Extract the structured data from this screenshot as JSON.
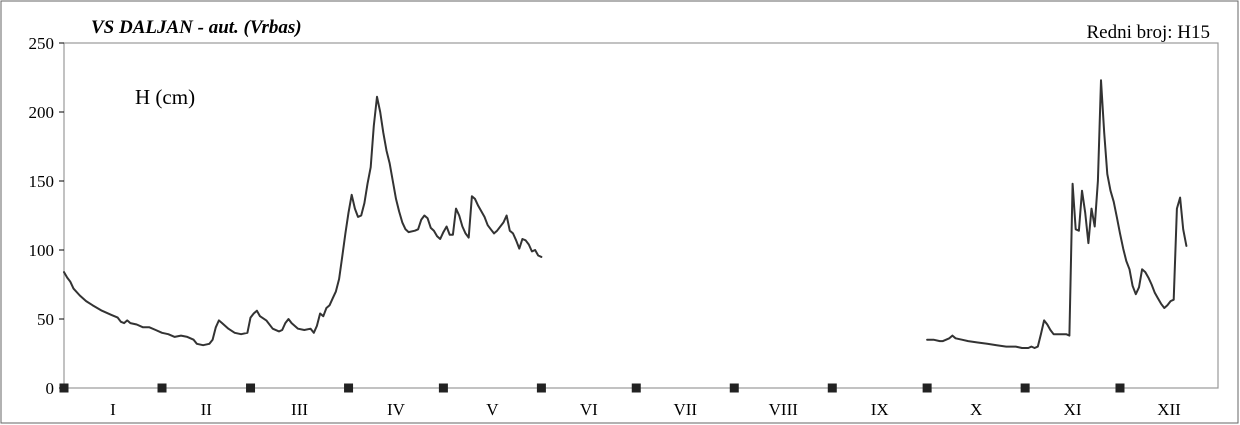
{
  "chart_data": {
    "type": "line",
    "title": "VS DALJAN - aut. (Vrbas)",
    "id_label": "Redni broj: H15",
    "ylabel": "H  (cm)",
    "ylim": [
      0,
      250
    ],
    "yticks": [
      "0",
      "50",
      "100",
      "150",
      "200",
      "250"
    ],
    "xlim": [
      0,
      365
    ],
    "grid": false,
    "months": [
      "I",
      "II",
      "III",
      "IV",
      "V",
      "VI",
      "VII",
      "VIII",
      "IX",
      "X",
      "XI",
      "XII"
    ],
    "month_start_days": [
      0,
      31,
      59,
      90,
      120,
      151,
      181,
      212,
      243,
      273,
      304,
      334
    ],
    "series": [
      {
        "color": "#333333",
        "segments": [
          [
            [
              0,
              84
            ],
            [
              1,
              80
            ],
            [
              2,
              77
            ],
            [
              3,
              72
            ],
            [
              5,
              67
            ],
            [
              7,
              63
            ],
            [
              9,
              60
            ],
            [
              12,
              56
            ],
            [
              15,
              53
            ],
            [
              17,
              51
            ],
            [
              18,
              48
            ],
            [
              19,
              47
            ],
            [
              20,
              49
            ],
            [
              21,
              47
            ],
            [
              23,
              46
            ],
            [
              25,
              44
            ],
            [
              27,
              44
            ],
            [
              29,
              42
            ],
            [
              31,
              40
            ],
            [
              33,
              39
            ],
            [
              35,
              37
            ],
            [
              37,
              38
            ],
            [
              39,
              37
            ],
            [
              41,
              35
            ],
            [
              42,
              32
            ],
            [
              44,
              31
            ],
            [
              46,
              32
            ],
            [
              47,
              35
            ],
            [
              48,
              44
            ],
            [
              49,
              49
            ],
            [
              50,
              47
            ],
            [
              52,
              43
            ],
            [
              54,
              40
            ],
            [
              56,
              39
            ],
            [
              58,
              40
            ],
            [
              59,
              51
            ],
            [
              60,
              54
            ],
            [
              61,
              56
            ],
            [
              62,
              52
            ],
            [
              64,
              49
            ],
            [
              66,
              43
            ],
            [
              68,
              41
            ],
            [
              69,
              42
            ],
            [
              70,
              47
            ],
            [
              71,
              50
            ],
            [
              72,
              47
            ],
            [
              74,
              43
            ],
            [
              76,
              42
            ],
            [
              78,
              43
            ],
            [
              79,
              40
            ],
            [
              80,
              45
            ],
            [
              81,
              54
            ],
            [
              82,
              52
            ],
            [
              83,
              58
            ],
            [
              84,
              60
            ],
            [
              85,
              65
            ],
            [
              86,
              70
            ],
            [
              87,
              79
            ],
            [
              88,
              95
            ],
            [
              89,
              112
            ],
            [
              90,
              127
            ],
            [
              91,
              140
            ],
            [
              92,
              130
            ],
            [
              93,
              124
            ],
            [
              94,
              125
            ],
            [
              95,
              134
            ],
            [
              96,
              148
            ],
            [
              97,
              160
            ],
            [
              98,
              190
            ],
            [
              99,
              211
            ],
            [
              100,
              200
            ],
            [
              101,
              185
            ],
            [
              102,
              172
            ],
            [
              103,
              163
            ],
            [
              104,
              150
            ],
            [
              105,
              137
            ],
            [
              106,
              128
            ],
            [
              107,
              120
            ],
            [
              108,
              115
            ],
            [
              109,
              113
            ],
            [
              111,
              114
            ],
            [
              112,
              115
            ],
            [
              113,
              122
            ],
            [
              114,
              125
            ],
            [
              115,
              123
            ],
            [
              116,
              116
            ],
            [
              117,
              114
            ],
            [
              118,
              110
            ],
            [
              119,
              108
            ],
            [
              120,
              113
            ],
            [
              121,
              117
            ],
            [
              122,
              111
            ],
            [
              123,
              111
            ],
            [
              124,
              130
            ],
            [
              125,
              125
            ],
            [
              126,
              117
            ],
            [
              127,
              112
            ],
            [
              128,
              109
            ],
            [
              129,
              139
            ],
            [
              130,
              137
            ],
            [
              131,
              132
            ],
            [
              133,
              124
            ],
            [
              134,
              118
            ],
            [
              135,
              115
            ],
            [
              136,
              112
            ],
            [
              137,
              114
            ],
            [
              139,
              120
            ],
            [
              140,
              125
            ],
            [
              141,
              114
            ],
            [
              142,
              112
            ],
            [
              143,
              107
            ],
            [
              144,
              101
            ],
            [
              145,
              108
            ],
            [
              146,
              107
            ],
            [
              147,
              104
            ],
            [
              148,
              99
            ],
            [
              149,
              100
            ],
            [
              150,
              96
            ],
            [
              151,
              95
            ]
          ],
          [
            [
              273,
              35
            ],
            [
              275,
              35
            ],
            [
              277,
              34
            ],
            [
              278,
              34
            ],
            [
              279,
              35
            ],
            [
              280,
              36
            ],
            [
              281,
              38
            ],
            [
              282,
              36
            ],
            [
              284,
              35
            ],
            [
              286,
              34
            ],
            [
              289,
              33
            ],
            [
              292,
              32
            ],
            [
              295,
              31
            ],
            [
              298,
              30
            ],
            [
              301,
              30
            ],
            [
              303,
              29
            ],
            [
              305,
              29
            ],
            [
              306,
              30
            ],
            [
              307,
              29
            ],
            [
              308,
              30
            ],
            [
              309,
              39
            ],
            [
              310,
              49
            ],
            [
              311,
              46
            ],
            [
              312,
              42
            ],
            [
              313,
              39
            ],
            [
              315,
              39
            ],
            [
              317,
              39
            ],
            [
              318,
              38
            ],
            [
              319,
              148
            ],
            [
              320,
              115
            ],
            [
              321,
              114
            ],
            [
              322,
              143
            ],
            [
              323,
              127
            ],
            [
              324,
              105
            ],
            [
              325,
              130
            ],
            [
              326,
              117
            ],
            [
              327,
              150
            ],
            [
              328,
              223
            ],
            [
              329,
              185
            ],
            [
              330,
              155
            ],
            [
              331,
              143
            ],
            [
              332,
              135
            ],
            [
              333,
              124
            ],
            [
              334,
              112
            ],
            [
              335,
              101
            ],
            [
              336,
              92
            ],
            [
              337,
              86
            ],
            [
              338,
              74
            ],
            [
              339,
              68
            ],
            [
              340,
              73
            ],
            [
              341,
              86
            ],
            [
              342,
              84
            ],
            [
              343,
              80
            ],
            [
              344,
              75
            ],
            [
              345,
              69
            ],
            [
              346,
              65
            ],
            [
              347,
              61
            ],
            [
              348,
              58
            ],
            [
              349,
              60
            ],
            [
              350,
              63
            ],
            [
              351,
              64
            ],
            [
              352,
              130
            ],
            [
              353,
              138
            ],
            [
              354,
              115
            ],
            [
              355,
              103
            ]
          ]
        ]
      }
    ]
  }
}
